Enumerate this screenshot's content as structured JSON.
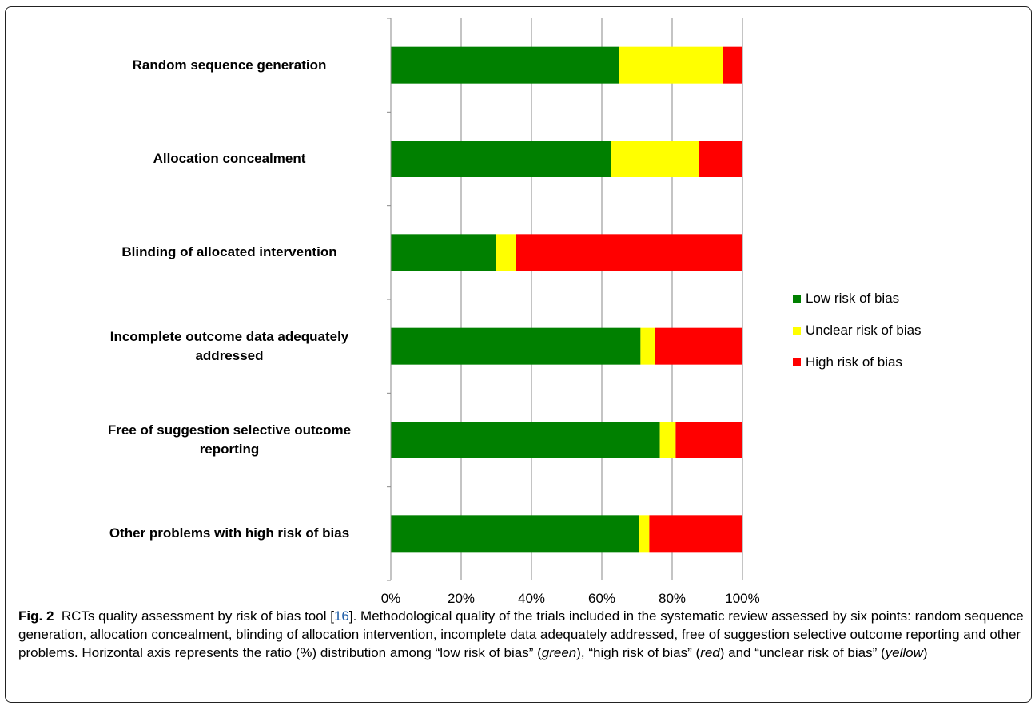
{
  "chart_data": {
    "type": "bar",
    "orientation": "horizontal",
    "stacked": true,
    "categories": [
      "Random sequence generation",
      "Allocation concealment",
      "Blinding of allocated intervention",
      "Incomplete outcome data adequately addressed",
      "Free of suggestion selective outcome reporting",
      "Other problems with high risk of bias"
    ],
    "series": [
      {
        "name": "Low risk of bias",
        "color": "#008000",
        "values": [
          65,
          62.5,
          30,
          71,
          76.5,
          70.5
        ]
      },
      {
        "name": "Unclear risk of bias",
        "color": "#ffff00",
        "values": [
          29.5,
          25,
          5.5,
          4,
          4.5,
          3
        ]
      },
      {
        "name": "High risk of bias",
        "color": "#ff0000",
        "values": [
          5.5,
          12.5,
          64.5,
          25,
          19,
          26.5
        ]
      }
    ],
    "xlim": [
      0,
      100
    ],
    "x_ticks": [
      "0%",
      "20%",
      "40%",
      "60%",
      "80%",
      "100%"
    ],
    "grid": true,
    "legend_position": "right"
  },
  "caption": {
    "label": "Fig. 2",
    "text_before_ref": "RCTs quality assessment by risk of bias tool [",
    "ref": "16",
    "text_after_ref": "]. Methodological quality of the trials included in the systematic review assessed by six points: random sequence generation, allocation concealment, blinding of allocation intervention, incomplete data adequately addressed, free of suggestion selective outcome reporting and other problems. Horizontal axis represents the ratio (%) distribution among “low risk of bias” (",
    "green": "green",
    "mid1": "), “high risk of bias” (",
    "red": "red",
    "mid2": ") and “unclear risk of bias” (",
    "yellow": "yellow",
    "end": ")"
  }
}
